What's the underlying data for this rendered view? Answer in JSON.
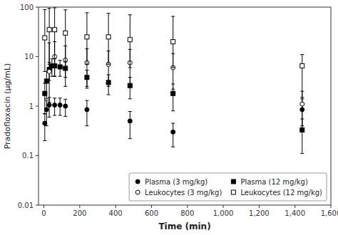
{
  "chart_data": {
    "type": "scatter",
    "xlabel": "Time (min)",
    "ylabel": "Pradofloxacin (μg/mL)",
    "log": "y",
    "legend": "lower right",
    "xlim": [
      -30,
      1600
    ],
    "ylim": [
      0.01,
      100
    ],
    "xticks": [
      0,
      200,
      400,
      600,
      800,
      {
        "value": 1000,
        "label": "1,000"
      },
      {
        "value": 1200,
        "label": "1,200"
      },
      {
        "value": 1400,
        "label": "1,400"
      },
      {
        "value": 1600,
        "label": "1,600"
      }
    ],
    "yticks": [
      0.01,
      0.1,
      1,
      10,
      100
    ],
    "series": [
      {
        "name": "Plasma (3 mg/kg)",
        "color": "#000000",
        "marker": "circle",
        "x": [
          5,
          15,
          30,
          60,
          90,
          120,
          240,
          480,
          720,
          1440
        ],
        "values": [
          0.45,
          0.85,
          1.05,
          1.05,
          1.05,
          1.0,
          0.85,
          0.5,
          0.3,
          0.85
        ],
        "error_low": [
          0.25,
          0.45,
          0.45,
          0.4,
          0.4,
          0.38,
          0.45,
          0.28,
          0.15,
          0.55
        ],
        "error_high": [
          0.25,
          0.45,
          0.45,
          0.4,
          0.4,
          0.38,
          0.45,
          0.28,
          0.15,
          0.55
        ]
      },
      {
        "name": "Plasma (12 mg/kg)",
        "color": "#000000",
        "marker": "square",
        "x": [
          5,
          15,
          30,
          45,
          60,
          90,
          120,
          240,
          360,
          480,
          720,
          1440
        ],
        "values": [
          1.8,
          3.2,
          5.5,
          6.5,
          6.5,
          6.2,
          5.8,
          3.8,
          3.0,
          2.6,
          1.8,
          0.33
        ],
        "error_low": [
          1.1,
          1.8,
          2.2,
          2.5,
          2.5,
          2.2,
          2.0,
          1.5,
          1.3,
          1.2,
          1.0,
          0.22
        ],
        "error_high": [
          1.1,
          1.8,
          2.2,
          2.5,
          2.5,
          2.2,
          2.0,
          1.5,
          1.3,
          1.2,
          1.0,
          0.22
        ]
      },
      {
        "name": "Leukocytes (3 mg/kg)",
        "color": "#000000",
        "marker": "open-circle",
        "x": [
          30,
          60,
          120,
          240,
          360,
          480,
          720,
          1440
        ],
        "values": [
          5.0,
          10.0,
          8.5,
          7.5,
          7.0,
          7.5,
          6.0,
          1.1
        ],
        "error_low": [
          3.8,
          6.0,
          6.0,
          5.0,
          4.5,
          5.0,
          3.8,
          0.7
        ],
        "error_high": [
          14.0,
          10.0,
          8.0,
          7.0,
          6.0,
          6.5,
          5.5,
          0.9
        ]
      },
      {
        "name": "Leukocytes (12 mg/kg)",
        "color": "#000000",
        "marker": "open-square",
        "x": [
          5,
          30,
          60,
          120,
          240,
          360,
          480,
          720,
          1440
        ],
        "values": [
          24.0,
          35.0,
          35.0,
          30.0,
          25.0,
          25.0,
          22.0,
          20.0,
          6.5
        ],
        "error_low": [
          19.0,
          28.0,
          28.0,
          22.0,
          18.0,
          18.0,
          16.0,
          14.0,
          5.0
        ],
        "error_high": [
          65.0,
          60.0,
          62.0,
          58.0,
          52.0,
          50.0,
          48.0,
          45.0,
          4.5
        ]
      }
    ]
  }
}
